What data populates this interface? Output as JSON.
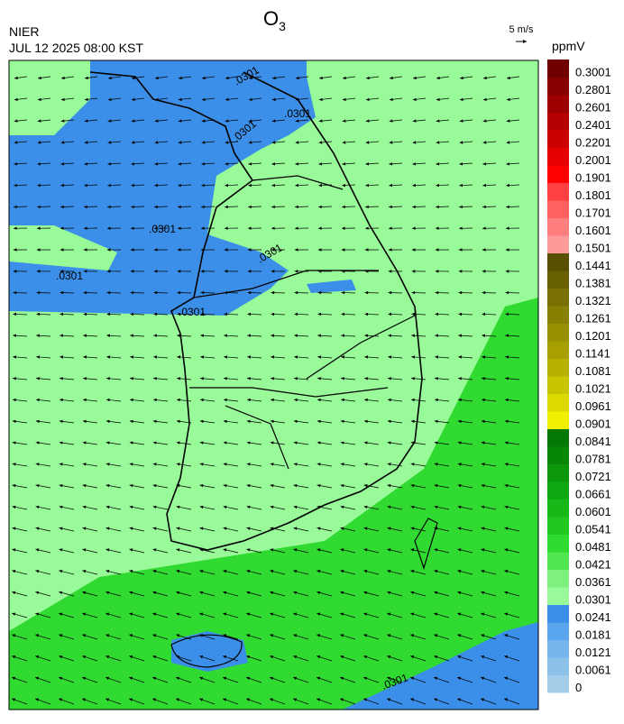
{
  "header": {
    "agency": "NIER",
    "datetime": "JUL 12 2025 08:00 KST",
    "title": {
      "base": "O",
      "sub": "3"
    }
  },
  "wind_scale": {
    "label": "5 m/s"
  },
  "colorbar": {
    "unit": "ppmV",
    "levels": [
      0,
      0.0061,
      0.0121,
      0.0181,
      0.0241,
      0.0301,
      0.0361,
      0.0421,
      0.0481,
      0.0541,
      0.0601,
      0.0661,
      0.0721,
      0.0781,
      0.0841,
      0.0901,
      0.0961,
      0.1021,
      0.1081,
      0.1141,
      0.1201,
      0.1261,
      0.1321,
      0.1381,
      0.1441,
      0.1501,
      0.1601,
      0.1701,
      0.1801,
      0.1901,
      0.2001,
      0.2201,
      0.2401,
      0.2601,
      0.2801,
      0.3001
    ],
    "colors": [
      "#a3cde8",
      "#8cc2ea",
      "#74b5ec",
      "#5aa6ee",
      "#3b8fe8",
      "#98fa98",
      "#7df07d",
      "#52e652",
      "#30da30",
      "#20c820",
      "#18b818",
      "#10a810",
      "#0a980a",
      "#068806",
      "#037803",
      "#f0f000",
      "#dcd800",
      "#c8c400",
      "#b8b000",
      "#a8a000",
      "#989000",
      "#888000",
      "#787000",
      "#686000",
      "#585000",
      "#ff9a9a",
      "#ff7f7f",
      "#ff6060",
      "#ff4040",
      "#ff0000",
      "#e60000",
      "#cc0000",
      "#b40000",
      "#9c0000",
      "#860000",
      "#700000"
    ]
  },
  "contour_labels": [
    ".0301",
    ".0301",
    ".0301",
    ".0301",
    ".0301",
    ".0301",
    ".0301",
    ".0301"
  ]
}
